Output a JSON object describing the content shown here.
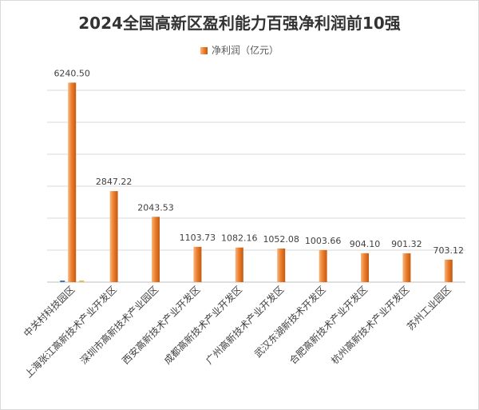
{
  "colors": {
    "bar_light": "#f6b77e",
    "bar_mid": "#ee7e2e",
    "bar_dark": "#c25a10",
    "gridline": "#d9d9d9",
    "axis": "#bfbfbf",
    "text": "#404040",
    "blue_mark": "#4472c4",
    "gold_mark": "#e4c04a"
  },
  "chart_data": {
    "type": "bar",
    "title": "2024全国高新区盈利能力百强净利润前10强",
    "legend_position": "top",
    "grid": true,
    "ylim": [
      0,
      6500
    ],
    "categories": [
      "中关村科技园区",
      "上海张江高新技术产业开发区",
      "深圳市高新技术产业园区",
      "西安高新技术产业开发区",
      "成都高新技术产业开发区",
      "广州高新技术产业开发区",
      "武汉东湖新技术开发区",
      "合肥高新技术产业开发区",
      "杭州高新技术产业开发区",
      "苏州工业园区"
    ],
    "series": [
      {
        "name": "净利润（亿元）",
        "values": [
          6240.5,
          2847.22,
          2043.53,
          1103.73,
          1082.16,
          1052.08,
          1003.66,
          904.1,
          901.32,
          703.12
        ],
        "labels": [
          "6240.50",
          "2847.22",
          "2043.53",
          "1103.73",
          "1082.16",
          "1052.08",
          "1003.66",
          "904.10",
          "901.32",
          "703.12"
        ]
      }
    ]
  }
}
